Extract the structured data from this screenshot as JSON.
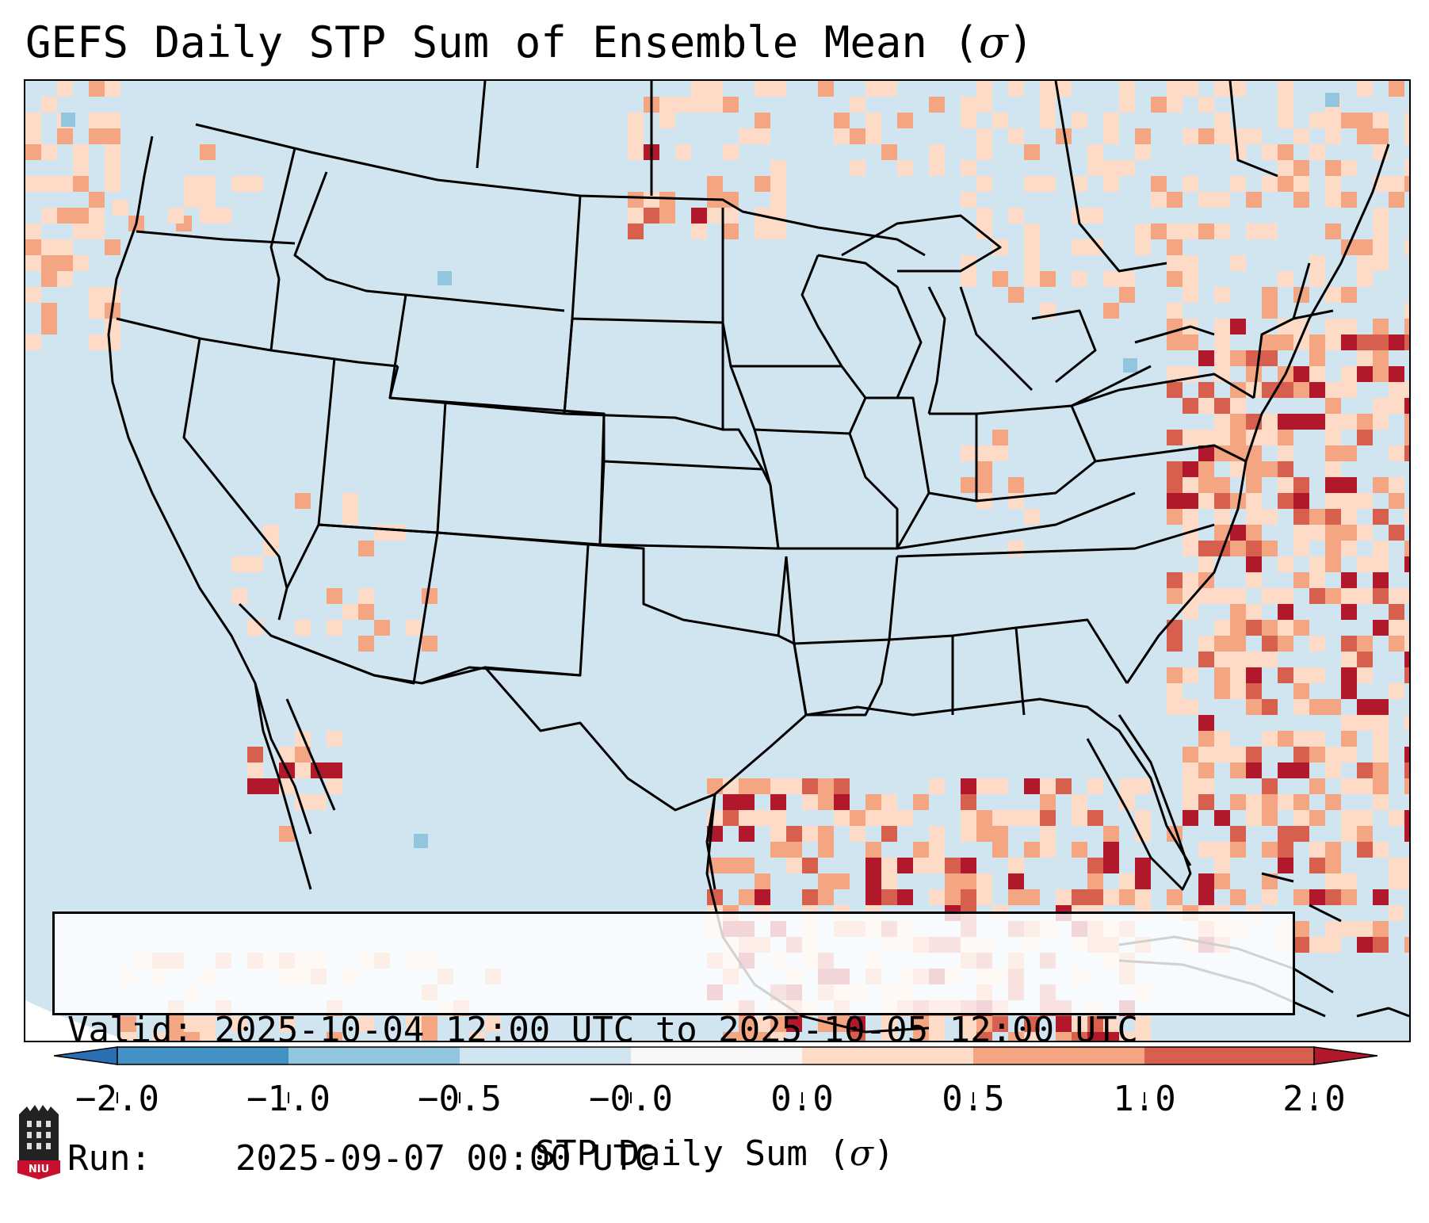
{
  "title": {
    "text": "GEFS Daily STP Sum of Ensemble Mean (",
    "symbol": "σ",
    "close": ")"
  },
  "info": {
    "valid_label": "Valid:",
    "valid_value": "2025-10-04 12:00 UTC to 2025-10-05 12:00 UTC",
    "run_label": "Run:",
    "run_value": "2025-09-07 00:00 UTC"
  },
  "colorbar": {
    "label_text": "STP Daily Sum (",
    "label_symbol": "σ",
    "label_close": ")",
    "ticks": [
      "−2.0",
      "−1.0",
      "−0.5",
      "−0.0",
      "0.0",
      "0.5",
      "1.0",
      "2.0"
    ],
    "colors": {
      "extend_low": "#2b6fb3",
      "c1": "#4292c6",
      "c2": "#92c5de",
      "c3": "#d1e5f0",
      "c4": "#f7f7f7",
      "c5": "#fddbc7",
      "c6": "#f4a582",
      "c7": "#d6604d",
      "extend_high": "#b2182b"
    }
  },
  "map": {
    "background_color": "#d1e5f0",
    "outline_color": "#000000"
  },
  "logo": {
    "text": "NIU",
    "color": "#c8102e"
  }
}
